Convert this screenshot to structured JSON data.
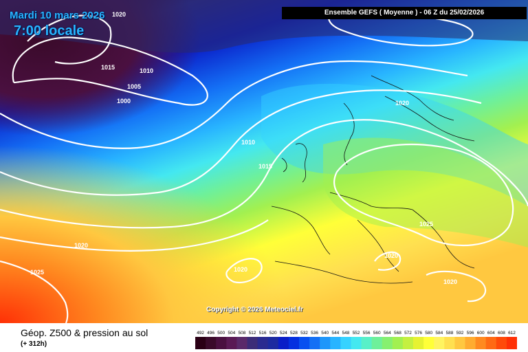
{
  "header": {
    "date": "Mardi 10 mars 2026",
    "time": "7:00 locale",
    "run_info": "Ensemble GEFS  ( Moyenne )  -  06 Z du 25/02/2026"
  },
  "map": {
    "copyright": "Copyright © 2026 Meteociel.fr",
    "pressure_labels": [
      "1020",
      "1015",
      "1010",
      "1005",
      "1000",
      "1010",
      "1015",
      "1020",
      "1025",
      "1020",
      "1025",
      "1020",
      "1020",
      "1020"
    ]
  },
  "footer": {
    "title": "Géop. Z500 & pression au sol",
    "lead_time": "(+ 312h)"
  },
  "legend": {
    "values": [
      "492",
      "496",
      "500",
      "504",
      "508",
      "512",
      "516",
      "520",
      "524",
      "528",
      "532",
      "536",
      "540",
      "544",
      "548",
      "552",
      "556",
      "560",
      "564",
      "568",
      "572",
      "576",
      "580",
      "584",
      "588",
      "592",
      "596",
      "600",
      "604",
      "608",
      "612"
    ],
    "colors": [
      "#2a0015",
      "#3a0a2a",
      "#4a1040",
      "#5a1a55",
      "#5a2a6a",
      "#3c2c78",
      "#2a2a90",
      "#1c2aa0",
      "#0a1ec8",
      "#0530e0",
      "#0850f0",
      "#1470f5",
      "#1e96fa",
      "#28b4ff",
      "#36d2ff",
      "#44e8f0",
      "#58f0c8",
      "#6ef09a",
      "#86f070",
      "#a2f050",
      "#c4f040",
      "#e6f232",
      "#ffff38",
      "#fff460",
      "#ffe050",
      "#ffc840",
      "#ffac30",
      "#ff8a20",
      "#ff6a14",
      "#ff4a0a",
      "#ff3006"
    ]
  }
}
